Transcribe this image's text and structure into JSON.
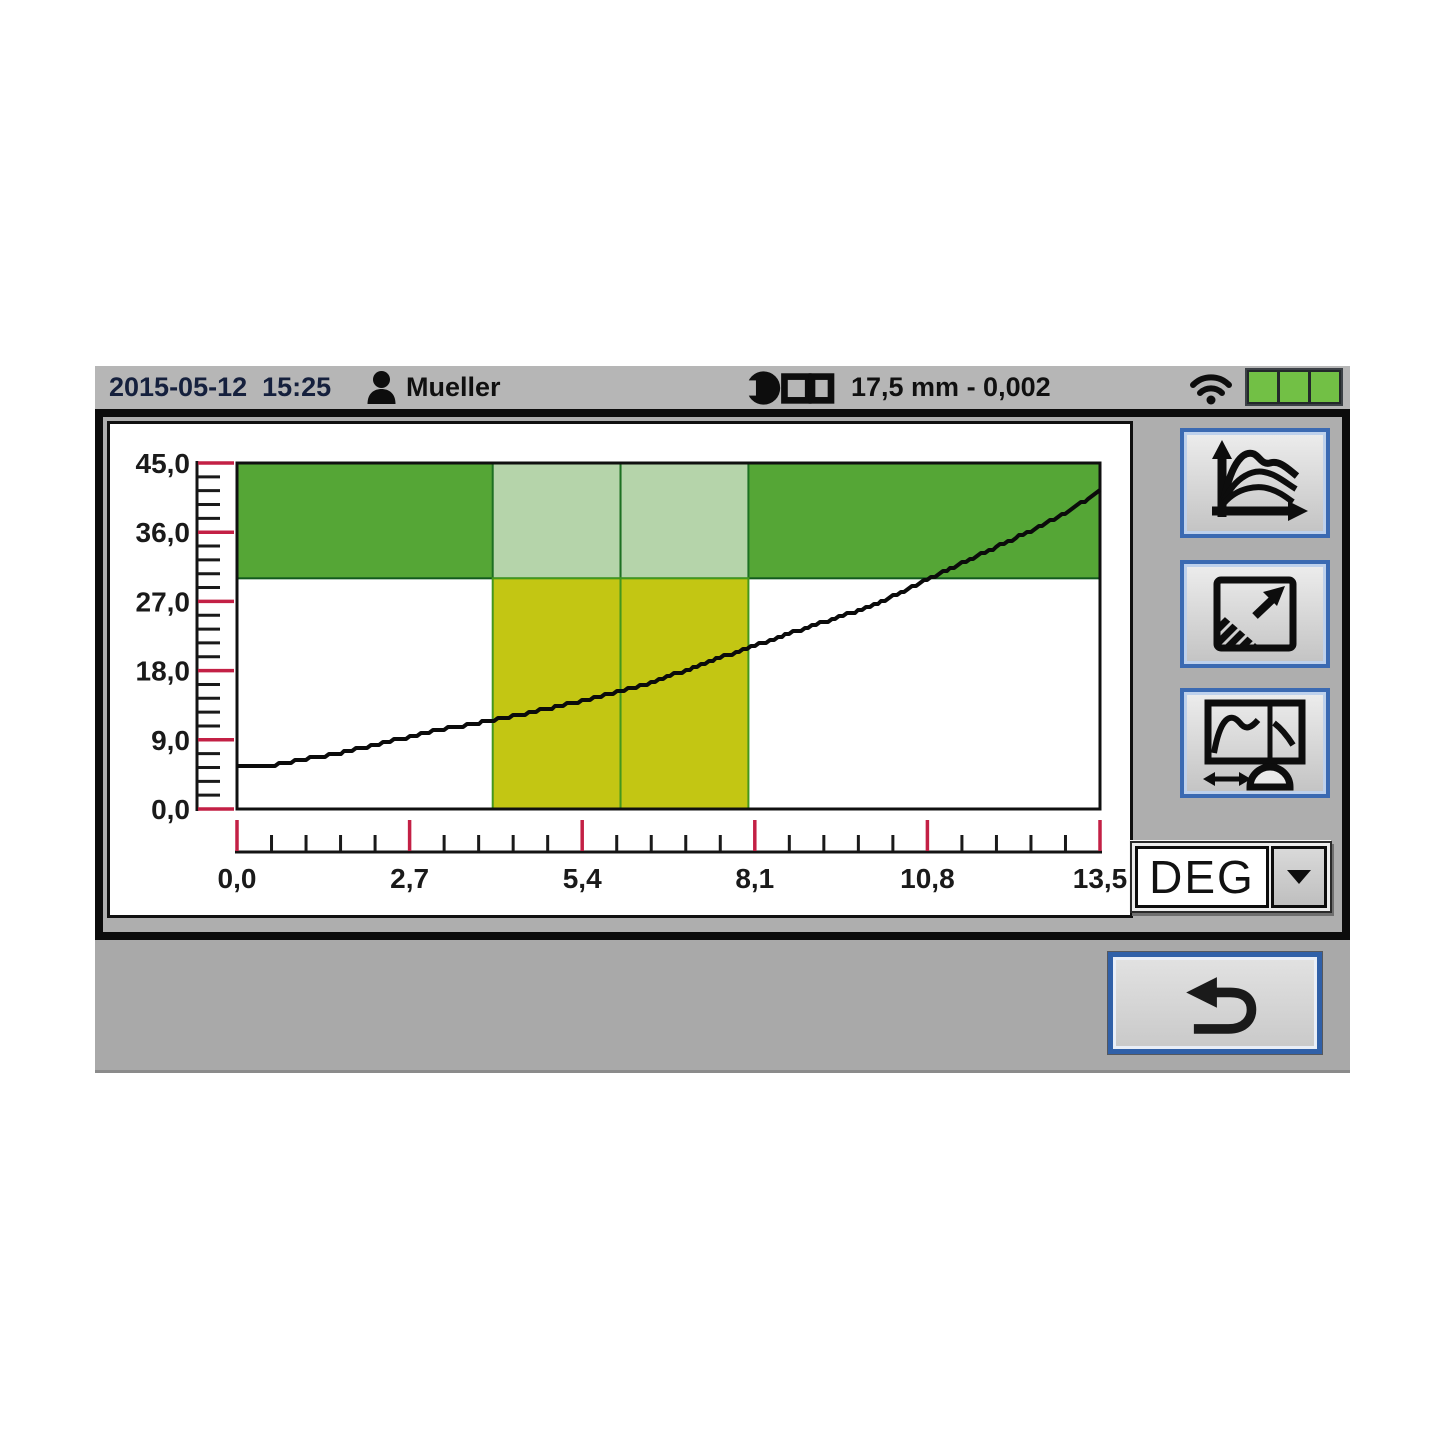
{
  "status_bar": {
    "datetime": "2015-05-12  15:25",
    "user": "Mueller",
    "tool_measurement": "17,5 mm - 0,002",
    "battery_segments": 3
  },
  "toolbar": {
    "buttons": [
      {
        "name": "curves-overview-button"
      },
      {
        "name": "zoom-extent-button"
      },
      {
        "name": "cursor-measure-button"
      }
    ]
  },
  "unit_select": {
    "value": "DEG"
  },
  "chart_data": {
    "type": "line",
    "title": "",
    "xlabel": "",
    "ylabel": "",
    "xlim": [
      0,
      13.5
    ],
    "ylim": [
      0,
      45
    ],
    "x_major_ticks": [
      0,
      2.7,
      5.4,
      8.1,
      10.8,
      13.5
    ],
    "x_tick_labels": [
      "0,0",
      "2,7",
      "5,4",
      "8,1",
      "10,8",
      "13,5"
    ],
    "y_major_ticks": [
      0,
      9,
      18,
      27,
      36,
      45
    ],
    "y_tick_labels": [
      "0,0",
      "9,0",
      "18,0",
      "27,0",
      "36,0",
      "45,0"
    ],
    "x_minor_step": 0.54,
    "y_minor_step": 1.8,
    "grid": false,
    "legend": false,
    "zones": [
      {
        "name": "target-band",
        "x0": 0,
        "x1": 13.5,
        "y0": 30,
        "y1": 45,
        "color": "#55a636",
        "border": "#11591d"
      },
      {
        "name": "band-highlight-1",
        "x0": 4.0,
        "x1": 6.0,
        "y0": 30,
        "y1": 45,
        "color": "#b5d4aa",
        "border": "#1d7022"
      },
      {
        "name": "band-highlight-2",
        "x0": 6.0,
        "x1": 8.0,
        "y0": 30,
        "y1": 45,
        "color": "#b5d4aa",
        "border": "#1d7022"
      },
      {
        "name": "eval-window-1",
        "x0": 4.0,
        "x1": 6.0,
        "y0": 0,
        "y1": 30,
        "color": "#c3c613",
        "border": "#43971d"
      },
      {
        "name": "eval-window-2",
        "x0": 6.0,
        "x1": 8.0,
        "y0": 0,
        "y1": 30,
        "color": "#c3c613",
        "border": "#43971d"
      }
    ],
    "series": [
      {
        "name": "measurement-curve",
        "color": "#0b0b0b",
        "points": [
          [
            0,
            5.4
          ],
          [
            0.4,
            5.45
          ],
          [
            1,
            6.4
          ],
          [
            1.5,
            7.1
          ],
          [
            2,
            8.0
          ],
          [
            2.5,
            9.0
          ],
          [
            3,
            10.0
          ],
          [
            3.5,
            10.8
          ],
          [
            4,
            11.5
          ],
          [
            4.5,
            12.4
          ],
          [
            5,
            13.3
          ],
          [
            5.5,
            14.3
          ],
          [
            6,
            15.3
          ],
          [
            6.5,
            16.5
          ],
          [
            7,
            18.0
          ],
          [
            7.5,
            19.5
          ],
          [
            8,
            21.0
          ],
          [
            8.5,
            22.4
          ],
          [
            9,
            23.8
          ],
          [
            9.5,
            25.2
          ],
          [
            10,
            26.7
          ],
          [
            10.5,
            28.6
          ],
          [
            11,
            30.7
          ],
          [
            11.5,
            32.6
          ],
          [
            12,
            34.5
          ],
          [
            12.5,
            36.5
          ],
          [
            13,
            38.7
          ],
          [
            13.5,
            41.4
          ]
        ]
      }
    ],
    "colors": {
      "axis": "#141414",
      "major_tick": "#c32045",
      "minor_tick": "#1a1a1a",
      "label": "#1a1a1a"
    }
  }
}
